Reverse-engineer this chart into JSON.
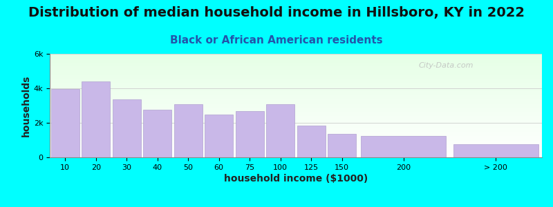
{
  "title": "Distribution of median household income in Hillsboro, KY in 2022",
  "subtitle": "Black or African American residents",
  "xlabel": "household income ($1000)",
  "ylabel": "households",
  "bar_labels": [
    "10",
    "20",
    "30",
    "40",
    "50",
    "60",
    "75",
    "100",
    "125",
    "150",
    "200",
    "> 200"
  ],
  "bar_values": [
    3950,
    4400,
    3350,
    2750,
    3100,
    2500,
    2700,
    3100,
    1850,
    1350,
    1250,
    750
  ],
  "bar_widths": [
    1,
    1,
    1,
    1,
    1,
    1,
    1,
    1,
    1,
    1,
    3,
    3
  ],
  "bar_positions": [
    0,
    1,
    2,
    3,
    4,
    5,
    6,
    7,
    8,
    9,
    11,
    14
  ],
  "bar_color": "#c9b8e8",
  "bar_edge_color": "#b0a0d0",
  "background_color": "#00ffff",
  "plot_bg_colors": [
    "#e6ffe6",
    "#ffffff"
  ],
  "ylim": [
    0,
    6000
  ],
  "yticks": [
    0,
    2000,
    4000,
    6000
  ],
  "ytick_labels": [
    "0",
    "2k",
    "4k",
    "6k"
  ],
  "title_fontsize": 14,
  "subtitle_fontsize": 11,
  "axis_label_fontsize": 10,
  "tick_fontsize": 8,
  "watermark": "City-Data.com"
}
